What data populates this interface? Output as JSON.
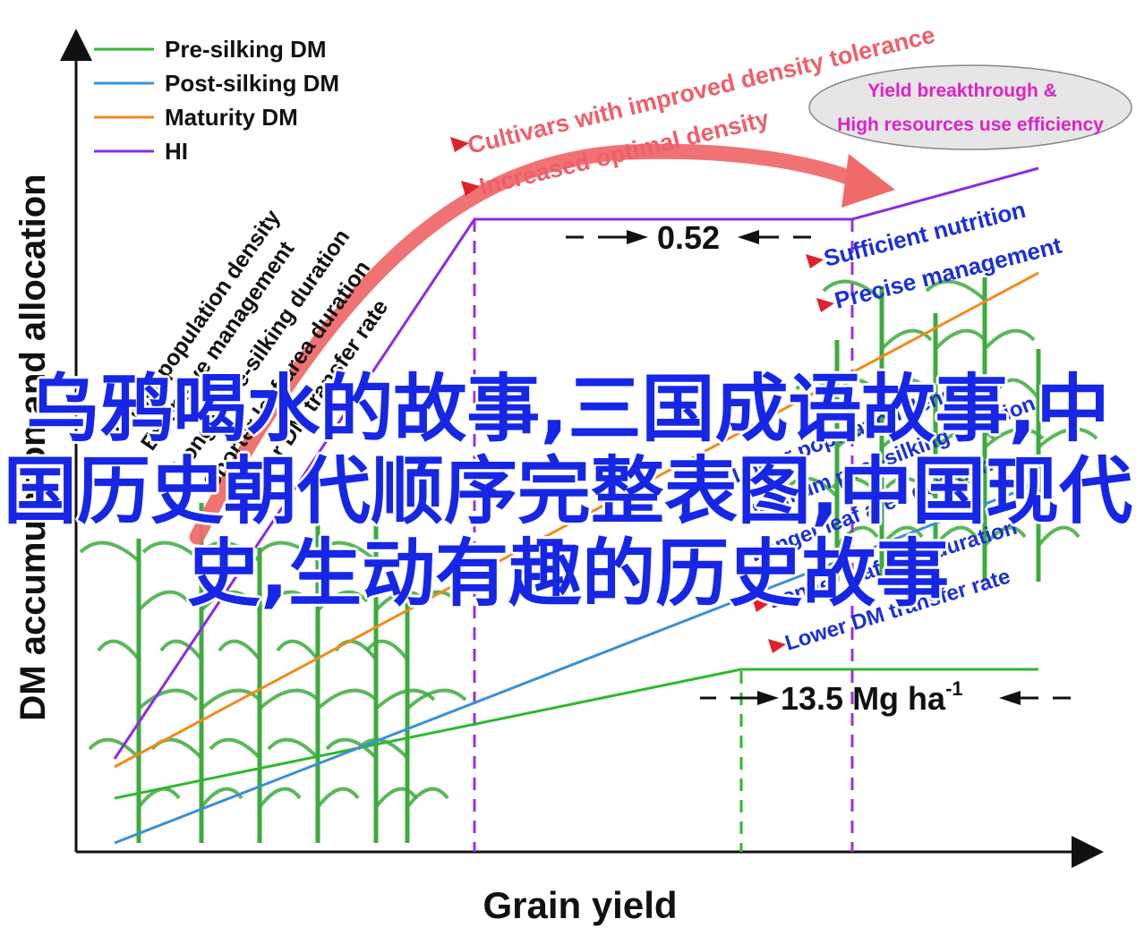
{
  "chart": {
    "axis_y_label": "DM accumulation and allocation",
    "axis_x_label": "Grain yield",
    "legend": [
      {
        "name": "Pre-silking DM",
        "color": "#2db82d"
      },
      {
        "name": "Post-silking DM",
        "color": "#3a8fd6"
      },
      {
        "name": "Maturity DM",
        "color": "#f08a1c"
      },
      {
        "name": "HI",
        "color": "#8a2be2"
      }
    ],
    "left_factors": [
      "Lower population density",
      "Extensive management",
      "Longer pre-silking duration",
      "Shorter leaf area duration",
      "Higher DM transfer rate"
    ],
    "top_labels": {
      "density_tolerance": "Cultivars with improved density tolerance",
      "optimal_density": "Increased optimal density",
      "ellipse_line1": "Yield breakthrough &",
      "ellipse_line2": "High resources use efficiency"
    },
    "right_top_factors": [
      "Sufficient nutrition",
      "Precise management"
    ],
    "right_bottom_factors": [
      "Lower population density",
      "Optimum post-silking duration",
      "Longer leaf area duration",
      "Longer leaf area duration",
      "Lower DM transfer rate"
    ],
    "hi_value": "0.52",
    "yield_value": "13.5 Mg ha",
    "yield_exponent": "-1",
    "colors": {
      "ellipse_fill": "#e6e6e6",
      "ellipse_text": "#e020c8",
      "arrow_red": "#f06a6a",
      "plant_green": "#3daa3d"
    }
  },
  "overlay_text": {
    "line1": "乌鸦喝水的故事,三国成语故事,中",
    "line2": "国历史朝代顺序完整表图,中国现代",
    "line3": "史,生动有趣的历史故事"
  }
}
